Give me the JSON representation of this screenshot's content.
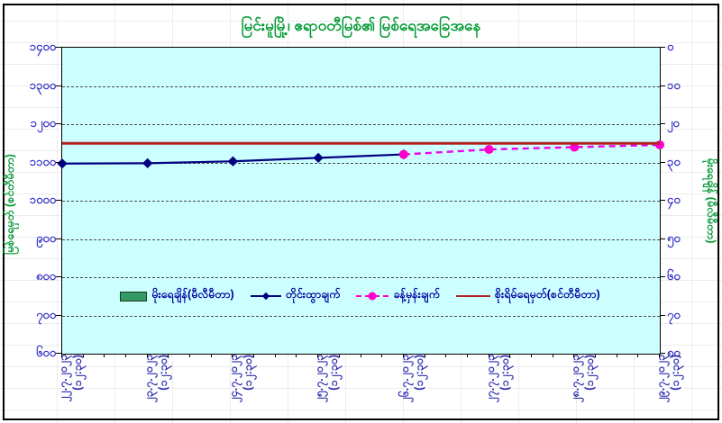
{
  "window": {
    "border_color": "#000000",
    "background_color": "#ffffff",
    "plot_background_color": "#ccffff"
  },
  "title": {
    "text": "မြင်းမူမြို့၊ ဧရာဝတီမြစ်၏ မြစ်ရေအခြေအနေ",
    "translit": "Myinmu town, water level situation of the Ayeyarwady River",
    "color": "#009933"
  },
  "axes": {
    "left": {
      "title": "မြစ်ရေမှတ် (စင်တီမီတာ)",
      "title_translit": "Water level (centimetre)",
      "tick_labels": [
        "၁၄၀၀",
        "၁၃၀၀",
        "၁၂၀၀",
        "၁၁၀၀",
        "၁၀၀၀",
        "၉၀၀",
        "၈၀၀",
        "၇၀၀",
        "၆၀၀"
      ],
      "tick_values": [
        1400,
        1300,
        1200,
        1100,
        1000,
        900,
        800,
        700,
        600
      ],
      "color": "#3533c8"
    },
    "right": {
      "title": "မိုးရေချိန် (မီလီမီတာ)",
      "title_translit": "Rainfall (millimetre)",
      "tick_labels": [
        "၀",
        "၁၀",
        "၂၀",
        "၃၀",
        "၄၀",
        "၅၀",
        "၆၀",
        "၇၀",
        "၈၀"
      ],
      "tick_values": [
        0,
        10,
        20,
        30,
        40,
        50,
        60,
        70,
        80
      ],
      "color": "#3533c8"
    },
    "x": {
      "labels": [
        {
          "date": "၂၂.၇.၂၀၂၃",
          "time": "(၁၂:၃၀)"
        },
        {
          "date": "၂၃.၇.၂၀၂၃",
          "time": "(၁၂:၃၀)"
        },
        {
          "date": "၂၄.၇.၂၀၂၃",
          "time": "(၁၂:၃၀)"
        },
        {
          "date": "၂၅.၇.၂၀၂၃",
          "time": "(၁၂:၃၀)"
        },
        {
          "date": "၂၆.၇.၂၀၂၃",
          "time": "(၁၂:၃၀)"
        },
        {
          "date": "၂၇.၇.၂၀၂၃",
          "time": "(၁၂:၃၀)"
        },
        {
          "date": "၂၈.၇.၂၀၂၃",
          "time": "(၁၂:၃၀)"
        },
        {
          "date": "၂၉.၇.၂၀၂၃",
          "time": "(၁၂:၃၀)"
        }
      ],
      "labels_translit": [
        "22.7.2023 (12:30)",
        "23.7.2023 (12:30)",
        "24.7.2023 (12:30)",
        "25.7.2023 (12:30)",
        "26.7.2023 (12:30)",
        "27.7.2023 (12:30)",
        "28.7.2023 (12:30)",
        "29.7.2023 (12:30)"
      ]
    }
  },
  "legend": {
    "items": [
      {
        "label": "မိုးရေချိန်(မီလီမီတာ)",
        "translit": "Rainfall (mm)",
        "swatch": "bar",
        "color": "#339966"
      },
      {
        "label": "တိုင်းထွာချက်",
        "translit": "Observed",
        "swatch": "line-diamond",
        "color": "#000080"
      },
      {
        "label": "ခန့်မှန်းချက်",
        "translit": "Forecast",
        "swatch": "dash-circle",
        "color": "#ff00cc"
      },
      {
        "label": "စိုးရိမ်ရေမှတ်(စင်တီမီတာ)",
        "translit": "Danger level (cm)",
        "swatch": "line",
        "color": "#b22222"
      }
    ]
  },
  "chart_data": {
    "type": "line",
    "title": "မြင်းမူမြို့၊ ဧရာဝတီမြစ်၏ မြစ်ရေအခြေအနေ",
    "categories": [
      "၂၂.၇.၂၀၂၃ (၁၂:၃၀)",
      "၂၃.၇.၂၀၂၃ (၁၂:၃၀)",
      "၂၄.၇.၂၀၂၃ (၁၂:၃၀)",
      "၂၅.၇.၂၀၂၃ (၁၂:၃၀)",
      "၂၆.၇.၂၀၂၃ (၁၂:၃၀)",
      "၂၇.၇.၂၀၂၃ (၁၂:၃၀)",
      "၂၈.၇.၂၀၂၃ (၁၂:၃၀)",
      "၂၉.၇.၂၀၂၃ (၁၂:၃၀)"
    ],
    "ylabel_left": "မြစ်ရေမှတ် (စင်တီမီတာ)",
    "ylabel_right": "မိုးရေချိန် (မီလီမီတာ)",
    "ylim_left": [
      600,
      1400
    ],
    "ylim_right": [
      0,
      80
    ],
    "y_right_inverted": true,
    "grid": "horizontal-dashed",
    "legend_position": "inside-bottom-center",
    "series": [
      {
        "name": "မိုးရေချိန်(မီလီမီတာ)",
        "type": "bar",
        "axis": "right",
        "color": "#339966",
        "start_index": 0,
        "values": [
          0,
          0,
          0,
          0,
          0,
          0,
          0,
          0
        ]
      },
      {
        "name": "တိုင်းထွာချက်",
        "type": "line",
        "axis": "left",
        "color": "#000080",
        "marker": "diamond",
        "dashed": false,
        "start_index": 0,
        "values": [
          1097,
          1098,
          1103,
          1112,
          1121
        ]
      },
      {
        "name": "ခန့်မှန်းချက်",
        "type": "line",
        "axis": "left",
        "color": "#ff00cc",
        "line_color": "#ee00ee",
        "marker": "circle",
        "dashed": true,
        "start_index": 4,
        "values": [
          1121,
          1134,
          1140,
          1146
        ]
      },
      {
        "name": "စိုးရိမ်ရေမှတ်(စင်တီမီတာ)",
        "type": "hline",
        "axis": "left",
        "color": "#b22222",
        "value": 1150
      }
    ]
  }
}
